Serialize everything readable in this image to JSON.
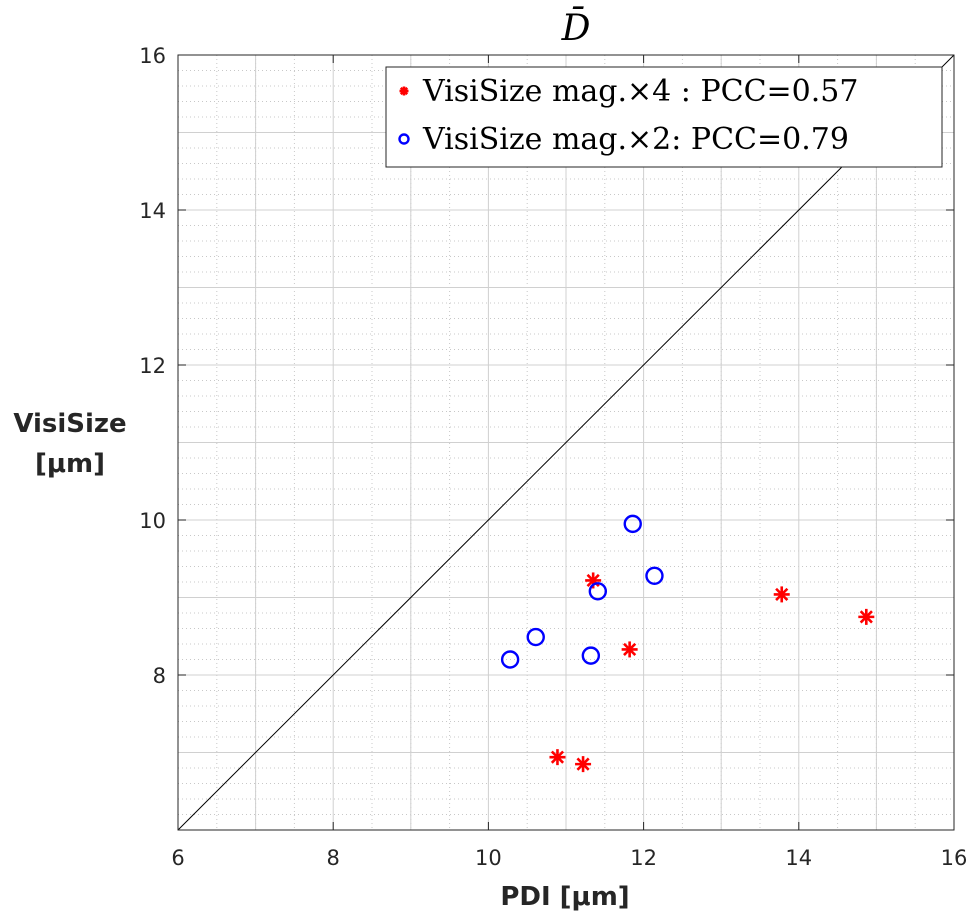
{
  "chart_data": {
    "type": "scatter",
    "title": "D̄",
    "xlabel": "PDI [μm]",
    "ylabel_lines": [
      "VisiSize",
      "[μm]"
    ],
    "xlim": [
      6,
      16
    ],
    "ylim": [
      6,
      16
    ],
    "xticks": [
      6,
      8,
      10,
      12,
      14,
      16
    ],
    "yticks": [
      8,
      10,
      12,
      14,
      16
    ],
    "grid": true,
    "minor_grid": true,
    "reference_line": "y = x",
    "legend_position": "top-right",
    "series": [
      {
        "name": "VisiSize mag.×4 : PCC=0.57",
        "marker": "asterisk",
        "color": "#ff0000",
        "points": [
          {
            "x": 11.35,
            "y": 9.22
          },
          {
            "x": 11.82,
            "y": 8.33
          },
          {
            "x": 13.78,
            "y": 9.04
          },
          {
            "x": 14.87,
            "y": 8.75
          },
          {
            "x": 10.89,
            "y": 6.94
          },
          {
            "x": 11.22,
            "y": 6.85
          }
        ]
      },
      {
        "name": "VisiSize mag.×2: PCC=0.79",
        "marker": "circle",
        "color": "#0000ff",
        "points": [
          {
            "x": 11.86,
            "y": 9.95
          },
          {
            "x": 12.14,
            "y": 9.28
          },
          {
            "x": 11.41,
            "y": 9.08
          },
          {
            "x": 10.61,
            "y": 8.49
          },
          {
            "x": 10.28,
            "y": 8.2
          },
          {
            "x": 11.32,
            "y": 8.25
          }
        ]
      }
    ]
  }
}
